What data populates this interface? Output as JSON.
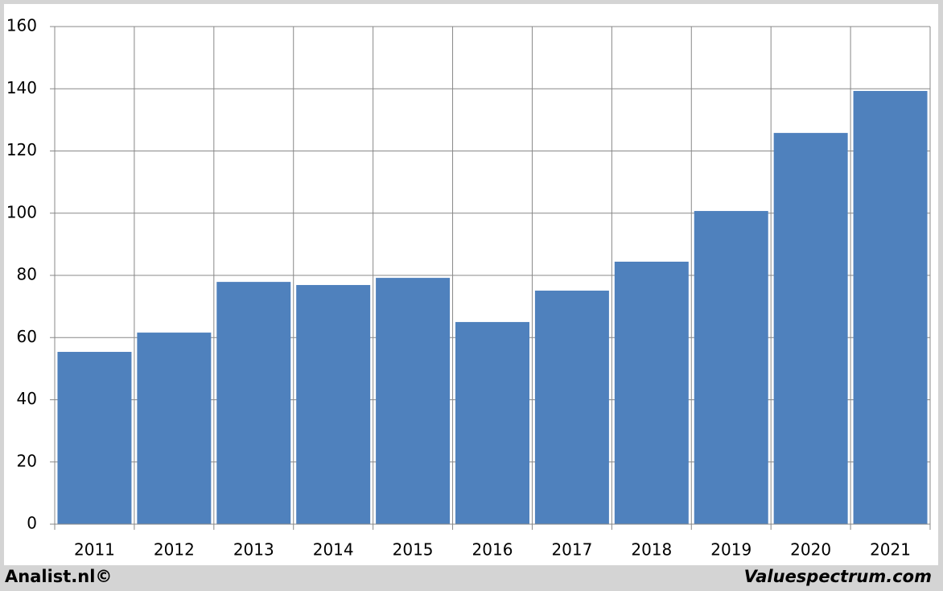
{
  "chart_data": {
    "type": "bar",
    "categories": [
      "2011",
      "2012",
      "2013",
      "2014",
      "2015",
      "2016",
      "2017",
      "2018",
      "2019",
      "2020",
      "2021"
    ],
    "values": [
      55.4,
      61.6,
      77.9,
      76.9,
      79.2,
      65.0,
      75.1,
      84.4,
      100.7,
      125.8,
      139.3
    ],
    "color": "#4f81bd",
    "ylim": [
      0,
      160
    ],
    "yticks": [
      0,
      20,
      40,
      60,
      80,
      100,
      120,
      140,
      160
    ],
    "grid": true
  },
  "footer": {
    "left": "Analist.nl©",
    "right": "Valuespectrum.com"
  }
}
